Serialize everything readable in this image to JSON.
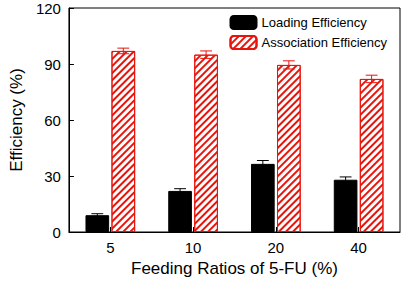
{
  "chart_data": {
    "type": "bar",
    "x_label": "Feeding Ratios of 5-FU (%)",
    "y_label": "Efficiency (%)",
    "categories": [
      "5",
      "10",
      "20",
      "40"
    ],
    "series": [
      {
        "name": "Loading Efficiency",
        "color": "#000000",
        "values": [
          9,
          22,
          36.5,
          28
        ],
        "errors": [
          0.8,
          1.2,
          1.8,
          1.5
        ]
      },
      {
        "name": "Association Efficiency",
        "color": "#e8140c",
        "values": [
          97,
          95,
          89.5,
          82
        ],
        "errors": [
          1.5,
          2,
          2.2,
          2
        ]
      }
    ],
    "ylim": [
      0,
      120
    ],
    "yticks": [
      0,
      30,
      60,
      90,
      120
    ],
    "grid": false,
    "legend": "upper right"
  }
}
